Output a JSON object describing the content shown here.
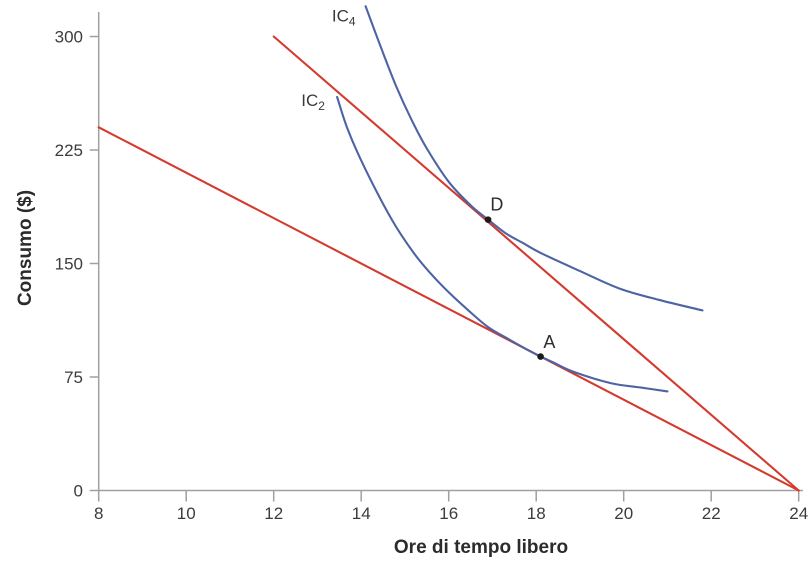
{
  "figure": {
    "background": "#ffffff",
    "x_title": "Ore di tempo libero",
    "y_title": "Consumo ($)"
  },
  "chart_data": {
    "type": "line",
    "title": "",
    "xlabel": "Ore di tempo libero",
    "ylabel": "Consumo ($)",
    "xlim": [
      8,
      24
    ],
    "ylim": [
      0,
      316
    ],
    "x_ticks": [
      8,
      10,
      12,
      14,
      16,
      18,
      20,
      22,
      24
    ],
    "y_ticks": [
      0,
      75,
      150,
      225,
      300
    ],
    "grid": false,
    "legend": "none",
    "colors": {
      "budget_line": "#d43a2e",
      "indifference_curve": "#4e63a4",
      "axis": "#a0a0a0",
      "tick_text": "#3c3c3c",
      "point": "#1a1a1a"
    },
    "series": [
      {
        "name": "budget-constraint-w15",
        "kind": "straight",
        "color_key": "budget_line",
        "points": [
          [
            8,
            240
          ],
          [
            24,
            0
          ]
        ]
      },
      {
        "name": "budget-constraint-w25",
        "kind": "straight",
        "color_key": "budget_line",
        "points": [
          [
            12,
            300
          ],
          [
            24,
            0
          ]
        ]
      },
      {
        "name": "indifference-curve-IC2",
        "kind": "smooth",
        "color_key": "indifference_curve",
        "points": [
          [
            13.45,
            260
          ],
          [
            13.7,
            238
          ],
          [
            14.1,
            212
          ],
          [
            14.7,
            179
          ],
          [
            15.2,
            157
          ],
          [
            15.6,
            143
          ],
          [
            16.0,
            131
          ],
          [
            16.45,
            119
          ],
          [
            16.9,
            108
          ],
          [
            17.4,
            99.5
          ],
          [
            17.8,
            93
          ],
          [
            18.1,
            88.5
          ],
          [
            18.4,
            84.5
          ],
          [
            18.85,
            78.5
          ],
          [
            19.7,
            71
          ],
          [
            20.4,
            68
          ],
          [
            21.0,
            65.5
          ]
        ]
      },
      {
        "name": "indifference-curve-IC4",
        "kind": "smooth",
        "color_key": "indifference_curve",
        "points": [
          [
            14.1,
            320
          ],
          [
            14.5,
            289
          ],
          [
            14.8,
            267
          ],
          [
            15.15,
            245
          ],
          [
            15.5,
            226
          ],
          [
            16.0,
            204
          ],
          [
            16.5,
            188.5
          ],
          [
            16.9,
            179
          ],
          [
            17.3,
            170
          ],
          [
            17.7,
            163.5
          ],
          [
            18.1,
            157
          ],
          [
            19.0,
            145
          ],
          [
            19.9,
            133.5
          ],
          [
            20.8,
            126
          ],
          [
            21.8,
            119
          ]
        ]
      }
    ],
    "points": [
      {
        "label": "A",
        "x": 18.1,
        "y": 88.5,
        "label_x": 18.3,
        "label_y": 98
      },
      {
        "label": "D",
        "x": 16.9,
        "y": 179,
        "label_x": 17.1,
        "label_y": 189
      }
    ],
    "curve_labels": [
      {
        "text": "IC",
        "sub": "2",
        "x": 12.9,
        "y": 258
      },
      {
        "text": "IC",
        "sub": "4",
        "x": 13.6,
        "y": 314
      }
    ]
  }
}
